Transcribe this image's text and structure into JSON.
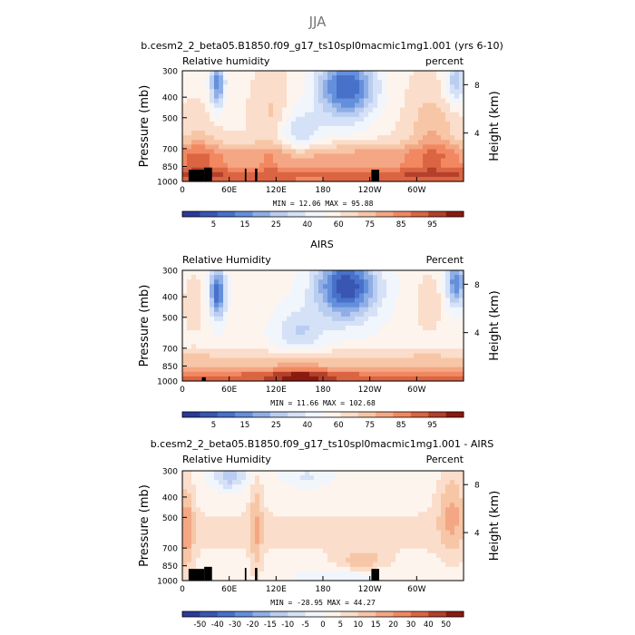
{
  "figure": {
    "title": "JJA"
  },
  "colors": {
    "neg_far": "#2b3a9a",
    "neg": "#4f7fd6",
    "neg_light": "#b9cdf0",
    "neutral": "#ffffff",
    "pos_light": "#f7c6a6",
    "pos": "#ef7850",
    "pos_far": "#8b1a10"
  },
  "chart_data": [
    {
      "type": "heatmap",
      "title": "b.cesm2_2_beta05.B1850.f09_g17_ts10spl0macmic1mg1.001 (yrs 6-10)",
      "left_label": "Relative humidity",
      "right_label": "percent",
      "ylabel": "Pressure (mb)",
      "ylabel_right": "Height (km)",
      "x_ticks": [
        "0",
        "60E",
        "120E",
        "180",
        "120W",
        "60W"
      ],
      "x_tick_lon": [
        0,
        60,
        120,
        180,
        240,
        300
      ],
      "xlim": [
        0,
        360
      ],
      "y_ticks": [
        "300",
        "400",
        "500",
        "700",
        "850",
        "1000"
      ],
      "y_tick_values": [
        300,
        400,
        500,
        700,
        850,
        1000
      ],
      "ylim": [
        300,
        1000
      ],
      "height_ticks": [
        "8",
        "4"
      ],
      "height_tick_km": [
        8,
        4
      ],
      "stats": "MIN =   12.06   MAX =   95.88",
      "min": 12.06,
      "max": 95.88,
      "colorbar_labels": [
        "5",
        "15",
        "25",
        "40",
        "60",
        "75",
        "85",
        "95"
      ],
      "n_colors": 16,
      "field": "model"
    },
    {
      "type": "heatmap",
      "title": "AIRS",
      "left_label": "Relative Humidity",
      "right_label": "Percent",
      "ylabel": "Pressure (mb)",
      "ylabel_right": "Height (km)",
      "x_ticks": [
        "0",
        "60E",
        "120E",
        "180",
        "120W",
        "60W"
      ],
      "x_tick_lon": [
        0,
        60,
        120,
        180,
        240,
        300
      ],
      "xlim": [
        0,
        360
      ],
      "y_ticks": [
        "300",
        "400",
        "500",
        "700",
        "850",
        "1000"
      ],
      "y_tick_values": [
        300,
        400,
        500,
        700,
        850,
        1000
      ],
      "ylim": [
        300,
        1000
      ],
      "height_ticks": [
        "8",
        "4"
      ],
      "height_tick_km": [
        8,
        4
      ],
      "stats": "MIN =   11.66   MAX =  102.68",
      "min": 11.66,
      "max": 102.68,
      "colorbar_labels": [
        "5",
        "15",
        "25",
        "40",
        "60",
        "75",
        "85",
        "95"
      ],
      "n_colors": 16,
      "field": "obs"
    },
    {
      "type": "heatmap",
      "title": "b.cesm2_2_beta05.B1850.f09_g17_ts10spl0macmic1mg1.001 - AIRS",
      "left_label": "Relative Humidity",
      "right_label": "Percent",
      "ylabel": "Pressure (mb)",
      "ylabel_right": "Height (km)",
      "x_ticks": [
        "0",
        "60E",
        "120E",
        "180",
        "120W",
        "60W"
      ],
      "x_tick_lon": [
        0,
        60,
        120,
        180,
        240,
        300
      ],
      "xlim": [
        0,
        360
      ],
      "y_ticks": [
        "300",
        "400",
        "500",
        "700",
        "850",
        "1000"
      ],
      "y_tick_values": [
        300,
        400,
        500,
        700,
        850,
        1000
      ],
      "ylim": [
        300,
        1000
      ],
      "height_ticks": [
        "8",
        "4"
      ],
      "height_tick_km": [
        8,
        4
      ],
      "stats": "MIN =  -28.95   MAX =   44.27",
      "min": -28.95,
      "max": 44.27,
      "colorbar_labels": [
        "-50",
        "-40",
        "-30",
        "-20",
        "-15",
        "-10",
        "-5",
        "0",
        "5",
        "10",
        "15",
        "20",
        "30",
        "40",
        "50"
      ],
      "n_colors": 16,
      "field": "diff"
    }
  ]
}
